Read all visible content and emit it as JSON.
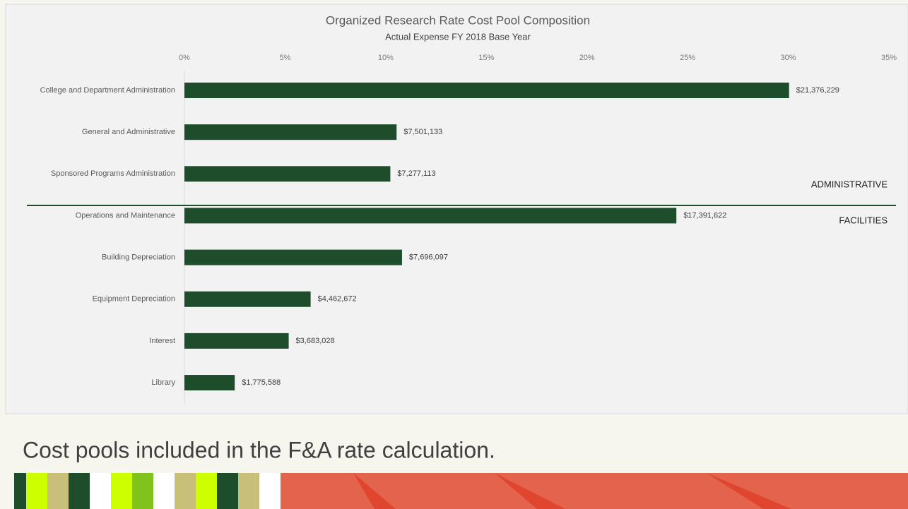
{
  "chart_data": {
    "type": "hbar",
    "title": "Organized Research Rate Cost Pool Composition",
    "subtitle": "Actual Expense FY 2018 Base Year",
    "categories": [
      "College and Department Administration",
      "General and Administrative",
      "Sponsored Programs Administration",
      "Operations and Maintenance",
      "Building Depreciation",
      "Equipment Depreciation",
      "Interest",
      "Library"
    ],
    "values": [
      30.04,
      10.54,
      10.23,
      24.44,
      10.81,
      6.27,
      5.18,
      2.5
    ],
    "data_labels": [
      "$21,376,229",
      "$7,501,133",
      "$7,277,113",
      "$17,391,622",
      "$7,696,097",
      "$4,462,672",
      "$3,683,028",
      "$1,775,588"
    ],
    "color": "#1e4d2b",
    "xlim": [
      0,
      35
    ],
    "xticks": [
      {
        "value": 0,
        "label": "0%"
      },
      {
        "value": 5,
        "label": "5%"
      },
      {
        "value": 10,
        "label": "10%"
      },
      {
        "value": 15,
        "label": "15%"
      },
      {
        "value": 20,
        "label": "20%"
      },
      {
        "value": 25,
        "label": "25%"
      },
      {
        "value": 30,
        "label": "30%"
      },
      {
        "value": 35,
        "label": "35%"
      }
    ],
    "annotations": [
      "ADMINISTRATIVE",
      "FACILITIES"
    ]
  },
  "caption": "Cost pools included in the F&A rate calculation."
}
